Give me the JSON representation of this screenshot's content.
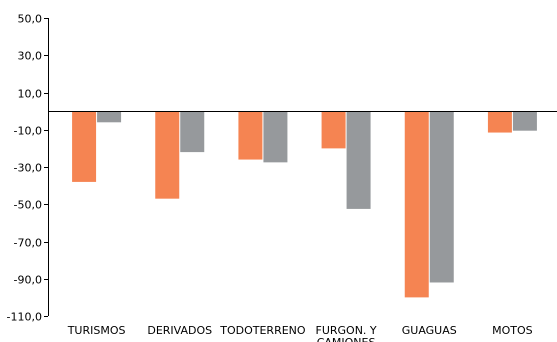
{
  "chart_data": {
    "type": "bar",
    "categories": [
      "TURISMOS",
      "DERIVADOS",
      "TODOTERRENO",
      "FURGON. Y CAMIONES",
      "GUAGUAS",
      "MOTOS"
    ],
    "series": [
      {
        "color": "#F58452",
        "values": [
          -38.0,
          -47.0,
          -26.0,
          -20.0,
          -100.0,
          -11.5
        ]
      },
      {
        "color": "#96999C",
        "values": [
          -6.0,
          -22.0,
          -27.5,
          -52.5,
          -92.0,
          -10.5
        ]
      }
    ],
    "ylim": [
      -110,
      50
    ],
    "yticks": [
      50,
      30,
      10,
      -10,
      -30,
      -50,
      -70,
      -90,
      -110
    ],
    "ytick_labels": [
      "50,0",
      "30,0",
      "10,0",
      "-10,0",
      "-30,0",
      "-50,0",
      "-70,0",
      "-90,0",
      "-110,0"
    ],
    "title": "",
    "xlabel": "",
    "ylabel": "",
    "grid": false,
    "legend": "none"
  }
}
